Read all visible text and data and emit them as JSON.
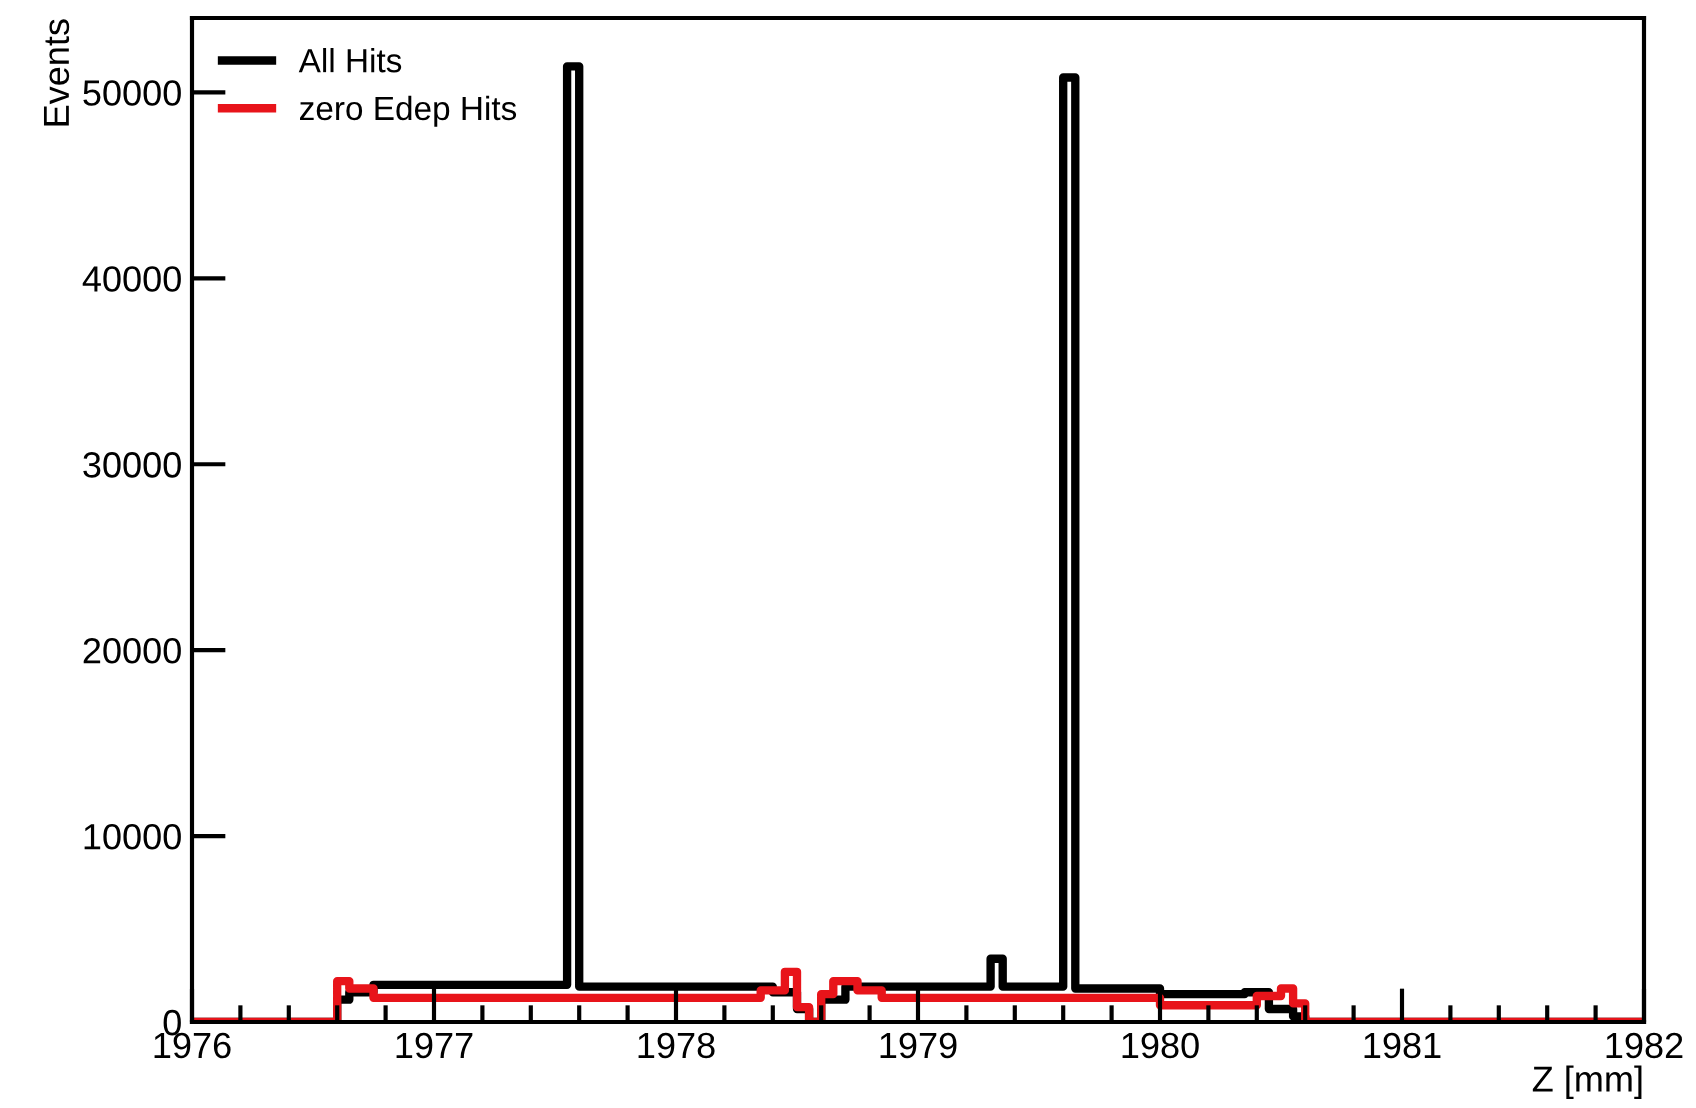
{
  "chart_data": {
    "type": "histogram",
    "xlabel": "Z [mm]",
    "ylabel": "Events",
    "bins": [
      1976,
      1976.6,
      1976.65,
      1976.75,
      1977.55,
      1977.6,
      1978.35,
      1978.4,
      1978.45,
      1978.5,
      1978.55,
      1978.6,
      1978.65,
      1978.7,
      1978.75,
      1978.85,
      1979.3,
      1979.35,
      1979.6,
      1979.65,
      1980.0,
      1980.35,
      1980.4,
      1980.45,
      1980.5,
      1980.55,
      1980.6,
      1982
    ],
    "series": [
      {
        "name": "All Hits",
        "color": "#000000",
        "values": [
          0,
          1200,
          1600,
          2000,
          51400,
          1900,
          1900,
          1600,
          1600,
          700,
          0,
          1200,
          1200,
          1900,
          1900,
          1900,
          3400,
          1900,
          50800,
          1800,
          1500,
          1600,
          1600,
          700,
          700,
          300,
          0
        ]
      },
      {
        "name": "zero Edep Hits",
        "color": "#e8141a",
        "values": [
          0,
          2200,
          1800,
          1300,
          1300,
          1300,
          1700,
          1700,
          2700,
          800,
          0,
          1500,
          2200,
          2200,
          1700,
          1300,
          1300,
          1300,
          1300,
          1300,
          900,
          900,
          1400,
          1400,
          1800,
          1000,
          0
        ]
      }
    ],
    "xlim": [
      1976,
      1982
    ],
    "xticks": [
      1976,
      {
        "value": 1976.2,
        "label": null
      },
      {
        "value": 1976.4,
        "label": null
      },
      {
        "value": 1976.6,
        "label": null
      },
      {
        "value": 1976.8,
        "label": null
      },
      1977,
      {
        "value": 1977.2,
        "label": null
      },
      {
        "value": 1977.4,
        "label": null
      },
      {
        "value": 1977.6,
        "label": null
      },
      {
        "value": 1977.8,
        "label": null
      },
      1978,
      {
        "value": 1978.2,
        "label": null
      },
      {
        "value": 1978.4,
        "label": null
      },
      {
        "value": 1978.6,
        "label": null
      },
      {
        "value": 1978.8,
        "label": null
      },
      1979,
      {
        "value": 1979.2,
        "label": null
      },
      {
        "value": 1979.4,
        "label": null
      },
      {
        "value": 1979.6,
        "label": null
      },
      {
        "value": 1979.8,
        "label": null
      },
      1980,
      {
        "value": 1980.2,
        "label": null
      },
      {
        "value": 1980.4,
        "label": null
      },
      {
        "value": 1980.6,
        "label": null
      },
      {
        "value": 1980.8,
        "label": null
      },
      1981,
      {
        "value": 1981.2,
        "label": null
      },
      {
        "value": 1981.4,
        "label": null
      },
      {
        "value": 1981.6,
        "label": null
      },
      {
        "value": 1981.8,
        "label": null
      },
      1982
    ],
    "ylim": [
      0,
      54000
    ],
    "yticks": [
      0,
      10000,
      20000,
      30000,
      40000,
      50000
    ],
    "legend": "top left",
    "grid": false
  }
}
